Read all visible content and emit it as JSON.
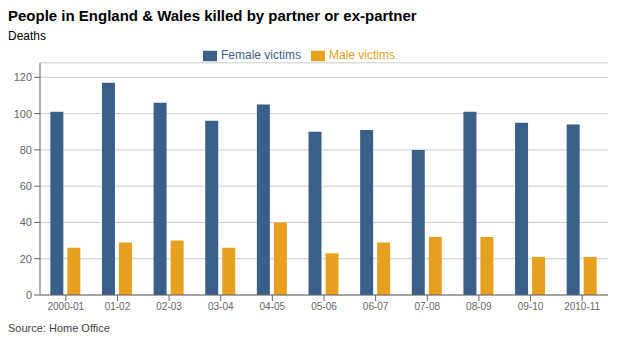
{
  "chart_data": {
    "type": "bar",
    "title": "People in England & Wales killed by partner or ex-partner",
    "ylabel": "Deaths",
    "source": "Source: Home Office",
    "categories": [
      "2000-01",
      "01-02",
      "02-03",
      "03-04",
      "04-05",
      "05-06",
      "06-07",
      "07-08",
      "08-09",
      "09-10",
      "2010-11"
    ],
    "series": [
      {
        "name": "Female victims",
        "color": "#3a5f8a",
        "values": [
          101,
          117,
          106,
          96,
          105,
          90,
          91,
          80,
          101,
          95,
          94
        ]
      },
      {
        "name": "Male victims",
        "color": "#e8a020",
        "values": [
          26,
          29,
          30,
          26,
          40,
          23,
          29,
          32,
          32,
          21,
          21
        ]
      }
    ],
    "ylim": [
      0,
      128
    ],
    "yticks": [
      0,
      20,
      40,
      60,
      80,
      100,
      120
    ],
    "grid": true,
    "legend": "top"
  }
}
